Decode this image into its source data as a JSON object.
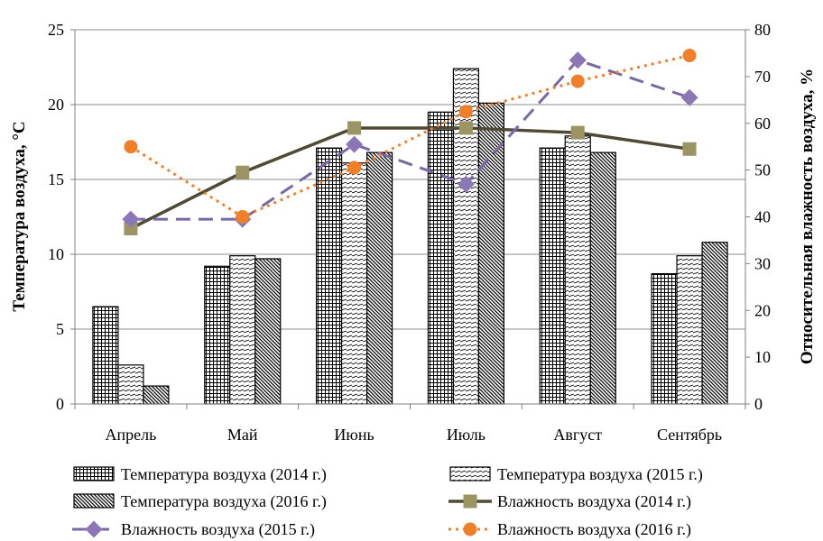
{
  "chart_data": {
    "type": "bar",
    "categories": [
      "Апрель",
      "Май",
      "Июнь",
      "Июль",
      "Август",
      "Сентябрь"
    ],
    "ylabel": "Температура воздуха, °С",
    "y2label": "Относительная влажность воздуха, %",
    "ylim": [
      0,
      25
    ],
    "y2lim": [
      0,
      80
    ],
    "yticks": [
      0,
      5,
      10,
      15,
      20,
      25
    ],
    "y2ticks": [
      0,
      10,
      20,
      30,
      40,
      50,
      60,
      70,
      80
    ],
    "grid": "horizontal",
    "legend_position": "bottom",
    "bar_series": [
      {
        "name": "Температура воздуха (2014 г.)",
        "pattern": "grid",
        "values": [
          6.5,
          9.2,
          17.1,
          19.5,
          17.1,
          8.7
        ]
      },
      {
        "name": "Температура воздуха (2015 г.)",
        "pattern": "horizontal-hatch",
        "values": [
          2.6,
          9.9,
          16.1,
          22.4,
          17.9,
          9.9
        ]
      },
      {
        "name": "Температура воздуха (2016 г.)",
        "pattern": "diagonal-hatch",
        "values": [
          1.2,
          9.7,
          16.8,
          20.1,
          16.8,
          10.8
        ]
      }
    ],
    "line_series": [
      {
        "name": "Влажность воздуха (2014 г.)",
        "axis": "right",
        "color": "#4f4a36",
        "marker_color": "#9b9463",
        "marker": "square",
        "dash": "solid",
        "values": [
          37.5,
          49.5,
          59,
          59,
          58,
          54.5
        ]
      },
      {
        "name": "Влажность воздуха (2015 г.)",
        "axis": "right",
        "color": "#7a68a6",
        "marker_color": "#8a78b6",
        "marker": "diamond",
        "dash": "dashed",
        "values": [
          39.5,
          39.5,
          55.5,
          47,
          73.5,
          65.5
        ]
      },
      {
        "name": "Влажность воздуха (2016 г.)",
        "axis": "right",
        "color": "#f07f2a",
        "marker_color": "#f07f2a",
        "marker": "circle",
        "dash": "dotted",
        "values": [
          55,
          40,
          50.5,
          62.5,
          69,
          74.5
        ]
      }
    ]
  }
}
